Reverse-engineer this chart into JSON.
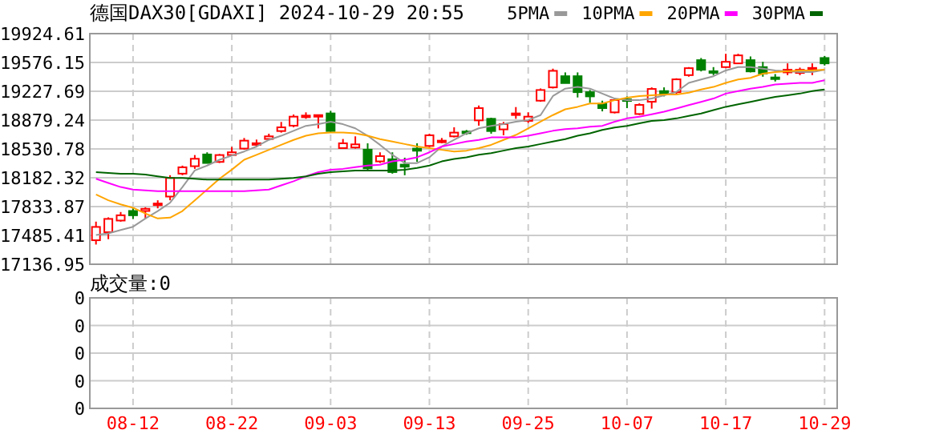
{
  "chart_data": [
    {
      "type": "candlestick",
      "title": "德国DAX30[GDAXI] 2024-10-29 20:55",
      "categories": [
        null,
        null,
        null,
        null,
        null,
        null,
        null,
        null,
        null,
        null,
        null,
        null,
        null,
        null,
        null,
        null,
        null,
        null,
        null,
        null,
        null,
        null,
        null,
        null,
        null,
        null,
        null,
        null,
        null,
        null,
        null,
        null,
        null,
        null,
        null,
        null,
        null,
        null,
        null,
        null,
        null,
        null,
        null,
        null,
        null,
        null,
        null,
        null,
        null,
        null,
        null,
        null,
        null,
        null,
        null,
        null,
        null,
        null,
        null,
        null
      ],
      "ohlc": [
        [
          17427,
          17652,
          17375,
          17588
        ],
        [
          17524,
          17704,
          17440,
          17685
        ],
        [
          17665,
          17768,
          17652,
          17729
        ],
        [
          17781,
          17813,
          17685,
          17729
        ],
        [
          17781,
          17826,
          17685,
          17807
        ],
        [
          17858,
          17910,
          17813,
          17871
        ],
        [
          17955,
          18213,
          17910,
          18180
        ],
        [
          18232,
          18329,
          18213,
          18309
        ],
        [
          18322,
          18457,
          18290,
          18412
        ],
        [
          18464,
          18490,
          18361,
          18361
        ],
        [
          18374,
          18470,
          18361,
          18457
        ],
        [
          18457,
          18554,
          18457,
          18490
        ],
        [
          18535,
          18663,
          18522,
          18631
        ],
        [
          18595,
          18644,
          18554,
          18600
        ],
        [
          18651,
          18715,
          18638,
          18683
        ],
        [
          18747,
          18857,
          18728,
          18792
        ],
        [
          18812,
          18947,
          18792,
          18921
        ],
        [
          18930,
          18973,
          18895,
          18934
        ],
        [
          18927,
          18947,
          18779,
          18940
        ],
        [
          18960,
          18992,
          18728,
          18747
        ],
        [
          18541,
          18651,
          18541,
          18599
        ],
        [
          18548,
          18683,
          18535,
          18586
        ],
        [
          18522,
          18599,
          18277,
          18296
        ],
        [
          18380,
          18490,
          18361,
          18444
        ],
        [
          18406,
          18490,
          18232,
          18251
        ],
        [
          18341,
          18425,
          18213,
          18316
        ],
        [
          18535,
          18599,
          18374,
          18509
        ],
        [
          18567,
          18715,
          18554,
          18696
        ],
        [
          18612,
          18663,
          18599,
          18631
        ],
        [
          18683,
          18792,
          18670,
          18728
        ],
        [
          18741,
          18760,
          18702,
          18721
        ],
        [
          18876,
          19056,
          18812,
          19024
        ],
        [
          18895,
          18908,
          18715,
          18747
        ],
        [
          18767,
          18857,
          18696,
          18831
        ],
        [
          18955,
          19037,
          18895,
          18960
        ],
        [
          18870,
          18973,
          18844,
          18921
        ],
        [
          19114,
          19262,
          19101,
          19243
        ],
        [
          19275,
          19501,
          19262,
          19475
        ],
        [
          19410,
          19456,
          19327,
          19327
        ],
        [
          19410,
          19456,
          19153,
          19217
        ],
        [
          19217,
          19243,
          19088,
          19166
        ],
        [
          19076,
          19114,
          18985,
          19024
        ],
        [
          18973,
          19140,
          18960,
          19121
        ],
        [
          19130,
          19166,
          19024,
          19125
        ],
        [
          18953,
          19082,
          18940,
          19063
        ],
        [
          19101,
          19275,
          19018,
          19256
        ],
        [
          19230,
          19275,
          19166,
          19192
        ],
        [
          19217,
          19385,
          19198,
          19372
        ],
        [
          19423,
          19520,
          19404,
          19507
        ],
        [
          19604,
          19630,
          19468,
          19488
        ],
        [
          19470,
          19520,
          19423,
          19465
        ],
        [
          19520,
          19681,
          19507,
          19584
        ],
        [
          19565,
          19681,
          19565,
          19662
        ],
        [
          19604,
          19649,
          19456,
          19468
        ],
        [
          19520,
          19584,
          19404,
          19443
        ],
        [
          19395,
          19436,
          19346,
          19390
        ],
        [
          19456,
          19565,
          19423,
          19488
        ],
        [
          19449,
          19514,
          19423,
          19488
        ],
        [
          19505,
          19565,
          19423,
          19510
        ],
        [
          19630,
          19655,
          19539,
          19565
        ]
      ],
      "colors": [
        "#ff0000",
        "#ff0000",
        "#ff0000",
        "#008000",
        "#ff0000",
        "#ff0000",
        "#ff0000",
        "#ff0000",
        "#ff0000",
        "#008000",
        "#ff0000",
        "#ff0000",
        "#ff0000",
        "#ff0000",
        "#ff0000",
        "#ff0000",
        "#ff0000",
        "#ff0000",
        "#ff0000",
        "#008000",
        "#ff0000",
        "#ff0000",
        "#008000",
        "#ff0000",
        "#008000",
        "#008000",
        "#008000",
        "#ff0000",
        "#ff0000",
        "#ff0000",
        "#008000",
        "#ff0000",
        "#008000",
        "#ff0000",
        "#ff0000",
        "#ff0000",
        "#ff0000",
        "#ff0000",
        "#008000",
        "#008000",
        "#008000",
        "#008000",
        "#ff0000",
        "#008000",
        "#ff0000",
        "#ff0000",
        "#008000",
        "#ff0000",
        "#ff0000",
        "#008000",
        "#008000",
        "#ff0000",
        "#ff0000",
        "#008000",
        "#008000",
        "#008000",
        "#ff0000",
        "#ff0000",
        "#ff0000",
        "#008000"
      ],
      "series": [
        {
          "name": "5PMA",
          "type": "line",
          "color": "#999999",
          "values": [
            17490,
            17510,
            17550,
            17590,
            17690,
            17780,
            17880,
            18070,
            18270,
            18330,
            18400,
            18450,
            18500,
            18560,
            18640,
            18690,
            18750,
            18810,
            18830,
            18860,
            18830,
            18780,
            18690,
            18580,
            18460,
            18360,
            18360,
            18430,
            18560,
            18640,
            18720,
            18780,
            18810,
            18830,
            18860,
            18880,
            18940,
            19170,
            19260,
            19280,
            19260,
            19200,
            19140,
            19120,
            19120,
            19140,
            19180,
            19220,
            19330,
            19370,
            19410,
            19480,
            19520,
            19520,
            19500,
            19480,
            19470,
            19460,
            19460,
            19490
          ]
        },
        {
          "name": "10PMA",
          "type": "line",
          "color": "#ffa500",
          "values": [
            17980,
            17910,
            17860,
            17820,
            17750,
            17690,
            17700,
            17780,
            17910,
            18040,
            18170,
            18280,
            18400,
            18460,
            18520,
            18580,
            18640,
            18690,
            18720,
            18730,
            18730,
            18720,
            18690,
            18650,
            18620,
            18590,
            18560,
            18540,
            18520,
            18500,
            18510,
            18540,
            18580,
            18640,
            18700,
            18780,
            18860,
            18940,
            19010,
            19040,
            19080,
            19080,
            19120,
            19150,
            19170,
            19180,
            19190,
            19190,
            19210,
            19250,
            19280,
            19330,
            19370,
            19390,
            19440,
            19460,
            19470,
            19480,
            19480,
            19490
          ]
        },
        {
          "name": "20PMA",
          "type": "line",
          "color": "#ff00ff",
          "values": [
            18170,
            18120,
            18070,
            18040,
            18030,
            18020,
            18020,
            18020,
            18020,
            18020,
            18020,
            18020,
            18020,
            18030,
            18040,
            18090,
            18140,
            18200,
            18250,
            18280,
            18290,
            18310,
            18330,
            18340,
            18380,
            18400,
            18430,
            18490,
            18560,
            18590,
            18620,
            18640,
            18670,
            18670,
            18670,
            18690,
            18720,
            18750,
            18770,
            18780,
            18800,
            18810,
            18860,
            18900,
            18920,
            18950,
            18980,
            19020,
            19060,
            19100,
            19140,
            19200,
            19230,
            19260,
            19280,
            19310,
            19320,
            19330,
            19330,
            19360
          ]
        },
        {
          "name": "30PMA",
          "type": "line",
          "color": "#006400",
          "values": [
            18250,
            18240,
            18230,
            18230,
            18220,
            18200,
            18180,
            18180,
            18170,
            18160,
            18160,
            18160,
            18160,
            18160,
            18160,
            18170,
            18180,
            18200,
            18230,
            18250,
            18260,
            18270,
            18270,
            18270,
            18270,
            18280,
            18300,
            18330,
            18380,
            18410,
            18430,
            18460,
            18480,
            18510,
            18540,
            18560,
            18590,
            18620,
            18650,
            18690,
            18720,
            18760,
            18790,
            18810,
            18840,
            18870,
            18880,
            18900,
            18930,
            18960,
            19000,
            19040,
            19070,
            19100,
            19130,
            19160,
            19180,
            19200,
            19230,
            19250
          ]
        }
      ],
      "ylim": [
        17136.95,
        19924.61
      ],
      "yticks": [
        17136.95,
        17485.41,
        17833.87,
        18182.32,
        18530.78,
        18879.24,
        19227.69,
        19576.15,
        19924.61
      ],
      "tick_labels": "y",
      "grid": true,
      "legend": "top right"
    },
    {
      "type": "bar",
      "title": "成交量:0",
      "categories": [
        null,
        null,
        null,
        "08-12",
        null,
        null,
        null,
        null,
        null,
        null,
        null,
        "08-22",
        null,
        null,
        null,
        null,
        null,
        null,
        null,
        "09-03",
        null,
        null,
        null,
        null,
        null,
        null,
        null,
        "09-13",
        null,
        null,
        null,
        null,
        null,
        null,
        null,
        "09-25",
        null,
        null,
        null,
        null,
        null,
        null,
        null,
        "10-07",
        null,
        null,
        null,
        null,
        null,
        null,
        null,
        "10-17",
        null,
        null,
        null,
        null,
        null,
        null,
        null,
        "10-29"
      ],
      "values": [
        0,
        0,
        0,
        0,
        0,
        0,
        0,
        0,
        0,
        0,
        0,
        0,
        0,
        0,
        0,
        0,
        0,
        0,
        0,
        0,
        0,
        0,
        0,
        0,
        0,
        0,
        0,
        0,
        0,
        0,
        0,
        0,
        0,
        0,
        0,
        0,
        0,
        0,
        0,
        0,
        0,
        0,
        0,
        0,
        0,
        0,
        0,
        0,
        0,
        0,
        0,
        0,
        0,
        0,
        0,
        0,
        0,
        0,
        0,
        0
      ],
      "ylim": [
        0,
        0.4
      ],
      "yticks": [
        {
          "value": 0,
          "label": "0"
        },
        {
          "value": 0.1,
          "label": "0"
        },
        {
          "value": 0.2,
          "label": "0"
        },
        {
          "value": 0.3,
          "label": "0"
        },
        {
          "value": 0.4,
          "label": "0"
        }
      ],
      "grid": true
    }
  ]
}
